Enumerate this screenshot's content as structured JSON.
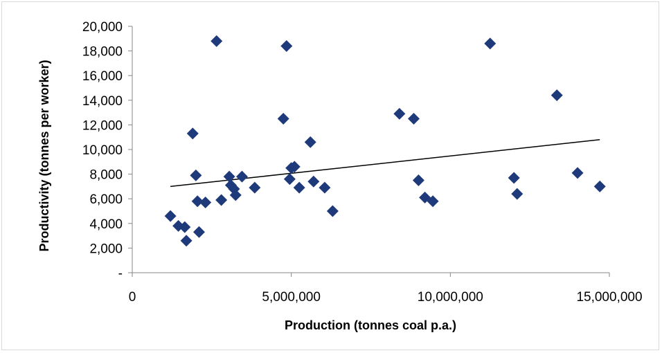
{
  "chart_data": {
    "type": "scatter",
    "title": "",
    "xlabel": "Production (tonnes coal p.a.)",
    "ylabel": "Productivity (tonnes per worker)",
    "xlim": [
      0,
      15000000
    ],
    "ylim": [
      0,
      20000
    ],
    "x_ticks": [
      0,
      5000000,
      10000000,
      15000000
    ],
    "x_tick_labels": [
      "0",
      "5,000,000",
      "10,000,000",
      "15,000,000"
    ],
    "y_ticks": [
      0,
      2000,
      4000,
      6000,
      8000,
      10000,
      12000,
      14000,
      16000,
      18000,
      20000
    ],
    "y_tick_labels": [
      "-",
      "2,000",
      "4,000",
      "6,000",
      "8,000",
      "10,000",
      "12,000",
      "14,000",
      "16,000",
      "18,000",
      "20,000"
    ],
    "grid": false,
    "legend": "none",
    "marker": "diamond",
    "marker_color": "#1f3a7a",
    "trendline_color": "#000000",
    "trendline": {
      "x": [
        1200000,
        14700000
      ],
      "y": [
        7000,
        10800
      ]
    },
    "points": [
      {
        "x": 1200000,
        "y": 4600
      },
      {
        "x": 1450000,
        "y": 3800
      },
      {
        "x": 1650000,
        "y": 3700
      },
      {
        "x": 1700000,
        "y": 2600
      },
      {
        "x": 1900000,
        "y": 11300
      },
      {
        "x": 2000000,
        "y": 7900
      },
      {
        "x": 2050000,
        "y": 5800
      },
      {
        "x": 2100000,
        "y": 3300
      },
      {
        "x": 2300000,
        "y": 5700
      },
      {
        "x": 2650000,
        "y": 18800
      },
      {
        "x": 2800000,
        "y": 5900
      },
      {
        "x": 3050000,
        "y": 7800
      },
      {
        "x": 3100000,
        "y": 7100
      },
      {
        "x": 3200000,
        "y": 6800
      },
      {
        "x": 3250000,
        "y": 6300
      },
      {
        "x": 3450000,
        "y": 7800
      },
      {
        "x": 3850000,
        "y": 6900
      },
      {
        "x": 4750000,
        "y": 12500
      },
      {
        "x": 4850000,
        "y": 18400
      },
      {
        "x": 4950000,
        "y": 7600
      },
      {
        "x": 5000000,
        "y": 8500
      },
      {
        "x": 5100000,
        "y": 8600
      },
      {
        "x": 5250000,
        "y": 6900
      },
      {
        "x": 5600000,
        "y": 10600
      },
      {
        "x": 5700000,
        "y": 7400
      },
      {
        "x": 6050000,
        "y": 6900
      },
      {
        "x": 6300000,
        "y": 5000
      },
      {
        "x": 8400000,
        "y": 12900
      },
      {
        "x": 8850000,
        "y": 12500
      },
      {
        "x": 9000000,
        "y": 7500
      },
      {
        "x": 9200000,
        "y": 6100
      },
      {
        "x": 9450000,
        "y": 5800
      },
      {
        "x": 11250000,
        "y": 18600
      },
      {
        "x": 12000000,
        "y": 7700
      },
      {
        "x": 12100000,
        "y": 6400
      },
      {
        "x": 13350000,
        "y": 14400
      },
      {
        "x": 14000000,
        "y": 8100
      },
      {
        "x": 14700000,
        "y": 7000
      }
    ]
  }
}
